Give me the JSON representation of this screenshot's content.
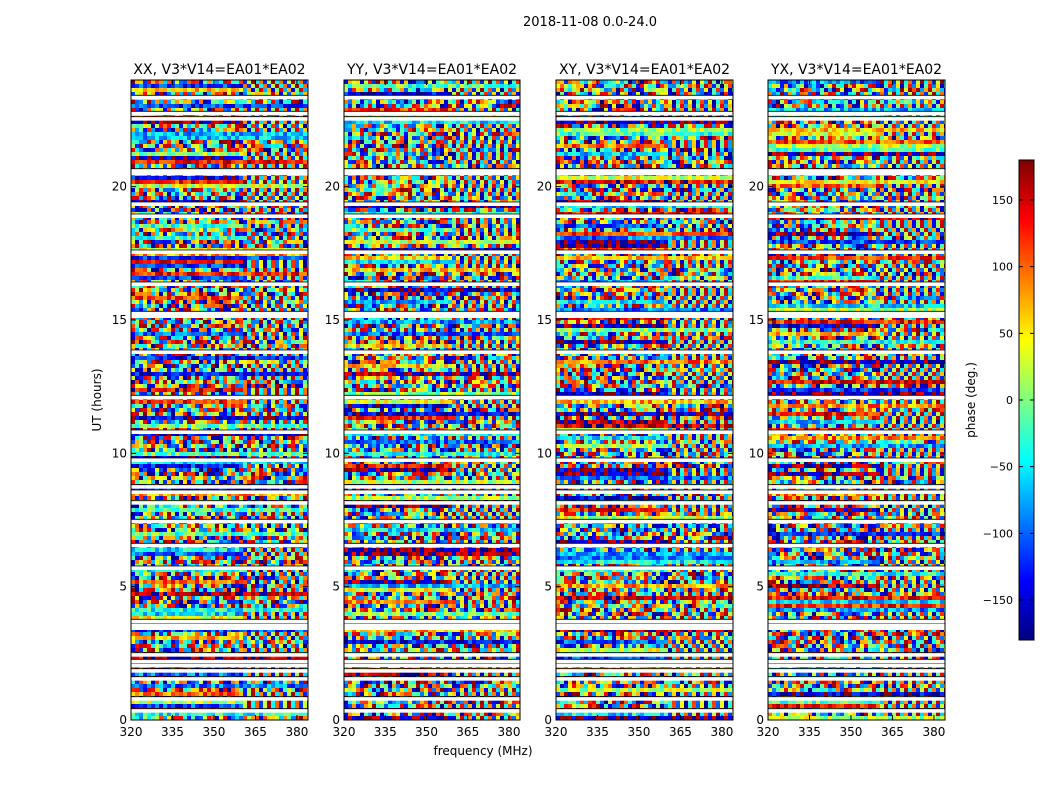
{
  "suptitle": "2018-11-08 0.0-24.0",
  "chart_data": {
    "type": "heatmap",
    "xlabel": "frequency (MHz)",
    "ylabel": "UT (hours)",
    "xlim": [
      320,
      384
    ],
    "ylim": [
      0,
      24
    ],
    "xticks": [
      "320",
      "335",
      "350",
      "365",
      "380"
    ],
    "yticks": [
      "0",
      "5",
      "10",
      "15",
      "20"
    ],
    "panels": [
      {
        "title": "XX, V3*V14=EA01*EA02"
      },
      {
        "title": "YY, V3*V14=EA01*EA02"
      },
      {
        "title": "XY, V3*V14=EA01*EA02"
      },
      {
        "title": "YX, V3*V14=EA01*EA02"
      }
    ],
    "colorbar": {
      "label": "phase (deg.)",
      "colormap": "jet",
      "range": [
        -180,
        180
      ],
      "ticks": [
        "150",
        "100",
        "50",
        "0",
        "−50",
        "−100",
        "−150"
      ],
      "tick_values": [
        150,
        100,
        50,
        0,
        -50,
        -100,
        -150
      ]
    },
    "flagged_ut_hours": [
      0.35,
      0.8,
      1.55,
      1.85,
      2.05,
      2.2,
      2.45,
      3.45,
      3.55,
      3.7,
      5.7,
      6.55,
      7.45,
      8.15,
      8.55,
      8.75,
      9.75,
      10.8,
      12.1,
      13.8,
      15.15,
      15.25,
      16.35,
      17.55,
      18.9,
      19.35,
      20.5,
      20.6,
      22.55,
      22.75,
      23.35
    ]
  }
}
